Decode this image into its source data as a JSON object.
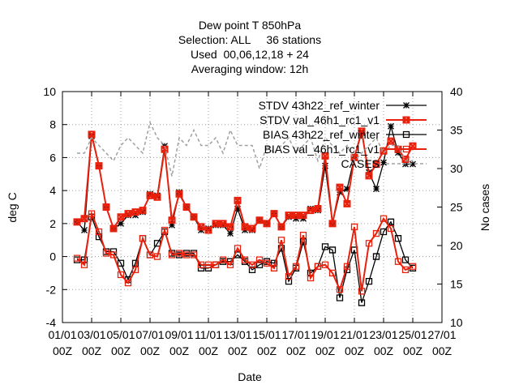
{
  "chart_data": {
    "type": "line",
    "title": [
      "Dew point T 850hPa",
      "Selection: ALL     36 stations",
      "Used  00,06,12,18 + 24",
      "Averaging window: 12h"
    ],
    "xlabel": "Date",
    "ylabel": "deg C",
    "y2label": "No cases",
    "x": [
      "02/01 00Z",
      "02/01 12Z",
      "03/01 00Z",
      "03/01 12Z",
      "04/01 00Z",
      "04/01 12Z",
      "05/01 00Z",
      "05/01 12Z",
      "06/01 00Z",
      "06/01 12Z",
      "07/01 00Z",
      "07/01 12Z",
      "08/01 00Z",
      "08/01 12Z",
      "09/01 00Z",
      "09/01 12Z",
      "10/01 00Z",
      "10/01 12Z",
      "11/01 00Z",
      "11/01 12Z",
      "12/01 00Z",
      "12/01 12Z",
      "13/01 00Z",
      "13/01 12Z",
      "14/01 00Z",
      "14/01 12Z",
      "15/01 00Z",
      "15/01 12Z",
      "16/01 00Z",
      "16/01 12Z",
      "17/01 00Z",
      "17/01 12Z",
      "18/01 00Z",
      "18/01 12Z",
      "19/01 00Z",
      "19/01 12Z",
      "20/01 00Z",
      "20/01 12Z",
      "21/01 00Z",
      "21/01 12Z",
      "22/01 00Z",
      "22/01 12Z",
      "23/01 00Z",
      "23/01 12Z",
      "24/01 00Z",
      "24/01 12Z",
      "25/01 00Z"
    ],
    "xlim": [
      "01/01 00Z",
      "27/01 00Z"
    ],
    "xticks": [
      "01/01 00Z",
      "03/01 00Z",
      "05/01 00Z",
      "07/01 00Z",
      "09/01 00Z",
      "11/01 00Z",
      "13/01 00Z",
      "15/01 00Z",
      "17/01 00Z",
      "19/01 00Z",
      "21/01 00Z",
      "23/01 00Z",
      "25/01 00Z",
      "27/01 00Z"
    ],
    "ylim": [
      -4,
      10
    ],
    "yticks": [
      -4,
      -2,
      0,
      2,
      4,
      6,
      8,
      10
    ],
    "y2lim": [
      10,
      40
    ],
    "y2ticks": [
      10,
      15,
      20,
      25,
      30,
      35,
      40
    ],
    "grid": true,
    "legend": "top-right",
    "series": [
      {
        "name": "STDV 43h22_ref_winter",
        "color": "#000000",
        "marker": "star",
        "values": [
          2.1,
          1.6,
          7.3,
          5.5,
          3.0,
          1.7,
          2.0,
          2.5,
          2.5,
          2.7,
          3.8,
          3.7,
          6.7,
          1.9,
          3.9,
          3.0,
          2.4,
          1.6,
          1.7,
          1.9,
          1.9,
          1.4,
          2.9,
          1.6,
          1.6,
          2.2,
          2.0,
          2.6,
          1.8,
          2.4,
          2.3,
          2.3,
          2.9,
          2.8,
          5.5,
          2.0,
          3.9,
          4.1,
          6.0,
          7.5,
          5.1,
          4.1,
          5.7,
          7.9,
          6.3,
          5.6,
          5.6
        ]
      },
      {
        "name": "STDV val_46h1_rc1_v1",
        "color": "#e8200c",
        "marker": "xbox",
        "values": [
          2.1,
          2.3,
          7.4,
          5.5,
          3.0,
          1.7,
          2.4,
          2.6,
          2.7,
          2.8,
          3.7,
          3.6,
          6.5,
          2.2,
          3.8,
          3.0,
          2.4,
          1.8,
          1.6,
          2.0,
          2.0,
          1.8,
          3.4,
          1.8,
          1.7,
          2.2,
          2.0,
          2.6,
          1.8,
          2.5,
          2.5,
          2.5,
          2.8,
          2.9,
          6.1,
          2.0,
          4.2,
          3.2,
          6.0,
          7.6,
          4.9,
          5.6,
          6.4,
          7.0,
          6.5,
          5.9,
          6.7
        ]
      },
      {
        "name": "BIAS 43h22_ref_winter",
        "color": "#000000",
        "marker": "square",
        "values": [
          -0.2,
          -0.2,
          2.4,
          1.2,
          0.3,
          0.3,
          -0.4,
          -1.4,
          -0.4,
          1.1,
          0.1,
          0.8,
          1.5,
          0.2,
          0.1,
          0.2,
          0.2,
          -0.7,
          -0.7,
          -0.5,
          -0.3,
          -0.3,
          0.1,
          -0.3,
          -0.8,
          -0.5,
          -0.3,
          -0.4,
          0.5,
          -1.5,
          -0.7,
          0.9,
          -1.0,
          -0.6,
          0.6,
          0.4,
          -2.5,
          -0.8,
          0.4,
          -2.8,
          -1.5,
          0.0,
          1.5,
          2.1,
          1.1,
          -0.2,
          -0.7
        ]
      },
      {
        "name": "BIAS val_46h1_rc1_v1",
        "color": "#e8200c",
        "marker": "square",
        "values": [
          -0.1,
          -0.5,
          2.6,
          1.5,
          0.2,
          0.1,
          -1.1,
          -1.6,
          -0.8,
          1.1,
          0.1,
          0.0,
          1.6,
          0.1,
          0.2,
          0.1,
          0.1,
          -0.5,
          -0.5,
          -0.5,
          -0.2,
          -0.5,
          0.5,
          -0.2,
          -0.5,
          -0.2,
          -0.4,
          -0.7,
          1.0,
          -1.2,
          -0.6,
          1.3,
          -1.3,
          -0.6,
          -0.5,
          -1.0,
          -2.0,
          -0.6,
          1.8,
          -2.1,
          0.8,
          1.4,
          2.3,
          1.7,
          -0.3,
          -0.8,
          -0.6
        ]
      },
      {
        "name": "CASES",
        "color": "#a0a0a0",
        "axis": "y2",
        "dashed": true,
        "values": [
          32,
          32,
          34,
          33,
          32,
          31,
          33,
          34,
          33,
          32,
          36,
          34,
          33,
          29,
          34,
          33,
          35,
          33,
          33,
          34,
          32,
          35,
          33,
          33,
          33,
          30,
          33,
          32,
          33,
          34,
          32,
          33,
          34,
          31,
          34,
          33,
          32,
          33,
          31,
          32,
          33,
          34,
          32,
          33,
          33,
          31,
          31
        ]
      }
    ]
  }
}
